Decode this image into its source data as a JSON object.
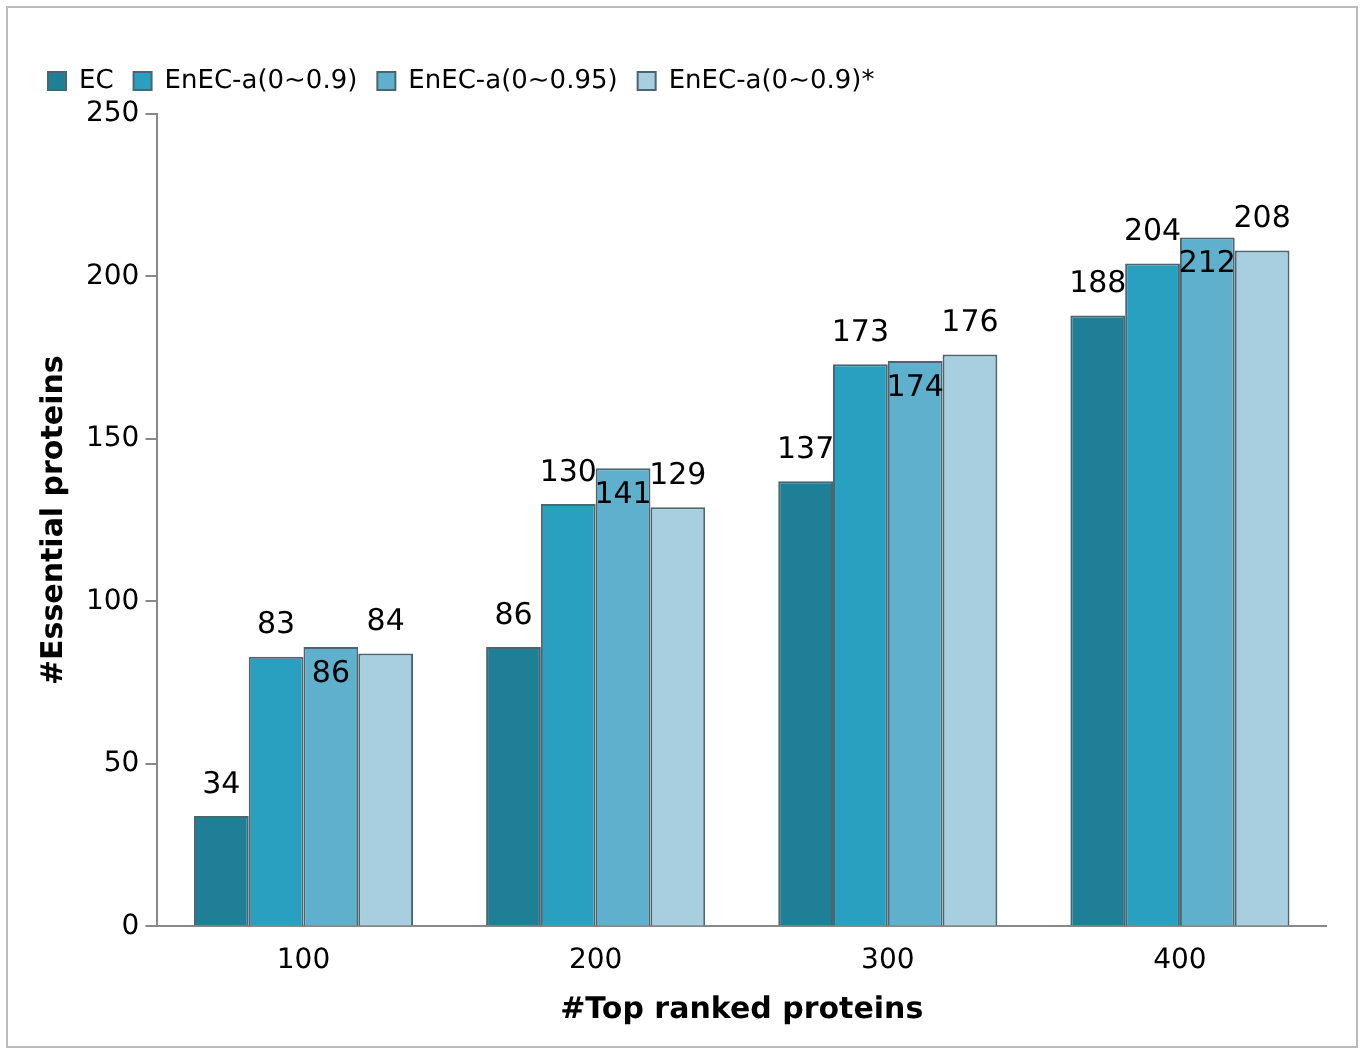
{
  "chart_data": {
    "type": "bar",
    "xlabel": "#Top ranked proteins",
    "ylabel": "#Essential proteins",
    "categories": [
      "100",
      "200",
      "300",
      "400"
    ],
    "series": [
      {
        "name": "EC",
        "color": "#1f7f96",
        "values": [
          34,
          86,
          137,
          188
        ]
      },
      {
        "name": "EnEC-a(0~0.9)",
        "color": "#2aa0c0",
        "values": [
          83,
          130,
          173,
          204
        ]
      },
      {
        "name": "EnEC-a(0~0.95)",
        "color": "#5fb0cc",
        "values": [
          86,
          141,
          174,
          212
        ]
      },
      {
        "name": "EnEC-a(0~0.9)*",
        "color": "#a8cfdf",
        "values": [
          84,
          129,
          176,
          208
        ]
      }
    ],
    "ylim": [
      0,
      250
    ],
    "yticks": [
      0,
      50,
      100,
      150,
      200,
      250
    ],
    "grid": false,
    "legend": "top left",
    "data_labels": true
  }
}
